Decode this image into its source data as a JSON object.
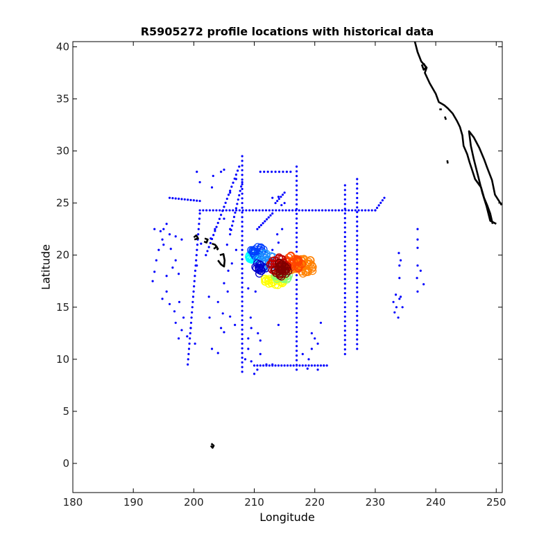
{
  "chart_data": {
    "type": "scatter",
    "title": "R5905272 profile locations with historical data",
    "xlabel": "Longitude",
    "ylabel": "Latitude",
    "xlim": [
      180,
      251
    ],
    "ylim": [
      -2.8,
      40.5
    ],
    "xticks": [
      180,
      190,
      200,
      210,
      220,
      230,
      240,
      250
    ],
    "yticks": [
      0,
      5,
      10,
      15,
      20,
      25,
      30,
      35,
      40
    ],
    "grid": false,
    "legend": "none",
    "colors": {
      "historical": "#0000ff",
      "coast": "#000000",
      "profile_colormap": [
        "#00ffff",
        "#0000cc",
        "#ffff00",
        "#7fff7f",
        "#ff8000",
        "#ff4000",
        "#c00000",
        "#800000"
      ]
    },
    "historical_lines": [
      {
        "x": [
          208,
          208
        ],
        "y": [
          8.8,
          29.5
        ],
        "step": 0.45
      },
      {
        "x": [
          217,
          217
        ],
        "y": [
          9.0,
          28.5
        ],
        "step": 0.45
      },
      {
        "x": [
          225,
          225
        ],
        "y": [
          10.5,
          26.7
        ],
        "step": 0.45
      },
      {
        "x": [
          227,
          227
        ],
        "y": [
          11.0,
          27.3
        ],
        "step": 0.45
      },
      {
        "x": [
          201,
          230
        ],
        "y": [
          24.3,
          24.3
        ],
        "step": 0.55
      },
      {
        "x": [
          210,
          222
        ],
        "y": [
          9.4,
          9.4
        ],
        "step": 0.5
      },
      {
        "x": [
          202,
          207.5
        ],
        "y": [
          20.0,
          28.5
        ],
        "step": 0.45
      },
      {
        "x": [
          199,
          201
        ],
        "y": [
          9.5,
          24.0
        ],
        "step": 0.5
      },
      {
        "x": [
          211,
          216
        ],
        "y": [
          28.0,
          28.0
        ],
        "step": 0.6
      },
      {
        "x": [
          230,
          231.5
        ],
        "y": [
          24.3,
          25.5
        ],
        "step": 0.4
      },
      {
        "x": [
          196,
          201
        ],
        "y": [
          25.5,
          25.2
        ],
        "step": 0.5
      },
      {
        "x": [
          206,
          208
        ],
        "y": [
          22.0,
          27.0
        ],
        "step": 0.45
      },
      {
        "x": [
          210.5,
          213
        ],
        "y": [
          22.5,
          24.0
        ],
        "step": 0.35
      },
      {
        "x": [
          213.5,
          215
        ],
        "y": [
          25.0,
          26.0
        ],
        "step": 0.35
      }
    ],
    "historical_points": [
      [
        193.2,
        17.5
      ],
      [
        193.5,
        18.4
      ],
      [
        193.8,
        19.5
      ],
      [
        194.2,
        20.5
      ],
      [
        194.8,
        21.5
      ],
      [
        195.0,
        22.5
      ],
      [
        193.5,
        22.5
      ],
      [
        194.5,
        22.3
      ],
      [
        195.5,
        23.0
      ],
      [
        196.0,
        22.0
      ],
      [
        197.0,
        21.8
      ],
      [
        198.0,
        21.5
      ],
      [
        195.0,
        21.0
      ],
      [
        196.2,
        20.6
      ],
      [
        197.0,
        19.5
      ],
      [
        195.5,
        18.0
      ],
      [
        196.5,
        18.8
      ],
      [
        197.5,
        18.2
      ],
      [
        194.8,
        15.8
      ],
      [
        195.5,
        16.5
      ],
      [
        196.0,
        15.3
      ],
      [
        196.8,
        14.6
      ],
      [
        197.6,
        15.5
      ],
      [
        198.3,
        14.0
      ],
      [
        197.0,
        13.5
      ],
      [
        198.0,
        12.8
      ],
      [
        198.9,
        12.2
      ],
      [
        197.5,
        12.0
      ],
      [
        199.5,
        13.0
      ],
      [
        200.2,
        11.5
      ],
      [
        203.0,
        11.0
      ],
      [
        204.0,
        10.6
      ],
      [
        205.0,
        12.6
      ],
      [
        204.5,
        13.0
      ],
      [
        202.5,
        16.0
      ],
      [
        202.6,
        14.0
      ],
      [
        204.0,
        15.5
      ],
      [
        205.6,
        16.5
      ],
      [
        204.8,
        14.4
      ],
      [
        206.0,
        14.1
      ],
      [
        206.8,
        13.3
      ],
      [
        205.0,
        17.3
      ],
      [
        205.7,
        18.5
      ],
      [
        206.3,
        19.2
      ],
      [
        207.0,
        20.5
      ],
      [
        205.5,
        21.0
      ],
      [
        206.0,
        22.5
      ],
      [
        205.0,
        23.5
      ],
      [
        203.0,
        26.5
      ],
      [
        203.2,
        27.6
      ],
      [
        204.5,
        28.0
      ],
      [
        205.0,
        28.2
      ],
      [
        206.0,
        26.0
      ],
      [
        207.0,
        27.3
      ],
      [
        200.5,
        28.0
      ],
      [
        201.0,
        27.0
      ],
      [
        203.5,
        22.5
      ],
      [
        202.8,
        21.6
      ],
      [
        200.5,
        19.0
      ],
      [
        201.2,
        21.1
      ],
      [
        209.0,
        12.0
      ],
      [
        209.0,
        11.0
      ],
      [
        208.5,
        10.0
      ],
      [
        209.5,
        9.8
      ],
      [
        210.0,
        8.6
      ],
      [
        210.5,
        9.0
      ],
      [
        211.0,
        10.5
      ],
      [
        211.0,
        11.8
      ],
      [
        210.6,
        12.5
      ],
      [
        212.0,
        9.5
      ],
      [
        213.0,
        9.5
      ],
      [
        209.5,
        13.0
      ],
      [
        209.4,
        14.0
      ],
      [
        210.2,
        16.5
      ],
      [
        209.0,
        16.8
      ],
      [
        219.0,
        10.0
      ],
      [
        218.0,
        10.5
      ],
      [
        219.5,
        11.0
      ],
      [
        220.0,
        12.0
      ],
      [
        220.5,
        11.5
      ],
      [
        221.0,
        13.5
      ],
      [
        218.8,
        9.1
      ],
      [
        220.5,
        9.0
      ],
      [
        221.5,
        9.4
      ],
      [
        214.0,
        13.3
      ],
      [
        219.5,
        12.5
      ],
      [
        213.0,
        25.5
      ],
      [
        214.0,
        25.6
      ],
      [
        214.5,
        24.8
      ],
      [
        215.0,
        25.0
      ],
      [
        214.0,
        21.2
      ],
      [
        213.8,
        22.0
      ],
      [
        214.6,
        22.5
      ],
      [
        213.0,
        20.5
      ],
      [
        233.2,
        14.5
      ],
      [
        233.5,
        15.0
      ],
      [
        234.0,
        15.8
      ],
      [
        233.8,
        14.0
      ],
      [
        234.5,
        15.0
      ],
      [
        234.2,
        16.0
      ],
      [
        233.0,
        15.5
      ],
      [
        233.4,
        16.2
      ],
      [
        234.0,
        19.0
      ],
      [
        234.2,
        19.5
      ],
      [
        233.9,
        20.2
      ],
      [
        234.0,
        17.8
      ],
      [
        237.0,
        22.5
      ],
      [
        237.0,
        21.5
      ],
      [
        237.0,
        20.7
      ],
      [
        236.9,
        17.8
      ],
      [
        237.0,
        19.0
      ],
      [
        237.5,
        18.5
      ],
      [
        238.0,
        17.2
      ],
      [
        237.0,
        16.5
      ]
    ],
    "profile_clusters": [
      {
        "cx": 209.8,
        "cy": 19.8,
        "rx": 0.9,
        "ry": 0.5,
        "n": 16,
        "color": "#00ffff"
      },
      {
        "cx": 210.5,
        "cy": 20.3,
        "rx": 1.2,
        "ry": 0.5,
        "n": 18,
        "color": "#0040ff"
      },
      {
        "cx": 211.8,
        "cy": 19.4,
        "rx": 1.5,
        "ry": 0.8,
        "n": 25,
        "color": "#1e90ff"
      },
      {
        "cx": 211.0,
        "cy": 18.7,
        "rx": 1.0,
        "ry": 0.6,
        "n": 14,
        "color": "#0000cc"
      },
      {
        "cx": 213.5,
        "cy": 17.6,
        "rx": 1.8,
        "ry": 0.5,
        "n": 28,
        "color": "#ffff00"
      },
      {
        "cx": 214.5,
        "cy": 17.9,
        "rx": 1.5,
        "ry": 0.5,
        "n": 18,
        "color": "#7fff7f"
      },
      {
        "cx": 218.0,
        "cy": 19.0,
        "rx": 2.2,
        "ry": 0.8,
        "n": 45,
        "color": "#ff8000"
      },
      {
        "cx": 216.5,
        "cy": 19.3,
        "rx": 1.5,
        "ry": 0.7,
        "n": 30,
        "color": "#ff4500"
      },
      {
        "cx": 214.0,
        "cy": 18.9,
        "rx": 1.5,
        "ry": 0.9,
        "n": 35,
        "color": "#c00000"
      },
      {
        "cx": 214.5,
        "cy": 18.6,
        "rx": 1.2,
        "ry": 0.7,
        "n": 25,
        "color": "#800000"
      }
    ],
    "coast_lines": [
      [
        [
          236.5,
          40.6
        ],
        [
          237.0,
          39.5
        ],
        [
          237.6,
          38.6
        ],
        [
          238.5,
          38.0
        ],
        [
          238.2,
          37.5
        ],
        [
          239.0,
          36.5
        ],
        [
          240.0,
          35.5
        ],
        [
          240.5,
          34.7
        ],
        [
          241.4,
          34.4
        ],
        [
          242.0,
          34.1
        ],
        [
          242.8,
          33.6
        ],
        [
          243.5,
          32.9
        ],
        [
          244.0,
          32.3
        ],
        [
          244.4,
          31.5
        ],
        [
          244.6,
          30.5
        ],
        [
          245.2,
          29.7
        ],
        [
          245.6,
          28.9
        ],
        [
          246.0,
          28.2
        ],
        [
          246.5,
          27.3
        ],
        [
          247.5,
          26.5
        ],
        [
          248.0,
          25.5
        ],
        [
          248.5,
          24.8
        ],
        [
          249.0,
          24.0
        ],
        [
          249.4,
          23.0
        ]
      ],
      [
        [
          250.9,
          24.8
        ],
        [
          249.8,
          25.8
        ],
        [
          249.3,
          27.2
        ],
        [
          248.5,
          28.4
        ],
        [
          248.0,
          29.2
        ],
        [
          247.2,
          30.3
        ],
        [
          246.3,
          31.3
        ],
        [
          245.5,
          31.9
        ],
        [
          245.8,
          30.5
        ],
        [
          246.3,
          29.2
        ],
        [
          247.0,
          27.6
        ],
        [
          247.7,
          26.0
        ],
        [
          248.4,
          24.7
        ],
        [
          249.0,
          23.3
        ],
        [
          250.0,
          23.0
        ]
      ],
      [
        [
          237.7,
          38.3
        ],
        [
          238.0,
          37.8
        ],
        [
          238.4,
          38.0
        ],
        [
          238.0,
          38.4
        ]
      ],
      [
        [
          240.6,
          34.0
        ],
        [
          241.0,
          34.0
        ]
      ],
      [
        [
          241.5,
          33.3
        ],
        [
          241.7,
          33.0
        ]
      ],
      [
        [
          241.9,
          29.1
        ],
        [
          242.0,
          28.8
        ]
      ],
      [
        [
          200.0,
          21.7
        ],
        [
          200.4,
          21.9
        ],
        [
          200.7,
          21.6
        ],
        [
          200.1,
          21.5
        ]
      ],
      [
        [
          201.8,
          21.6
        ],
        [
          202.3,
          21.5
        ],
        [
          202.1,
          21.2
        ],
        [
          201.7,
          21.3
        ]
      ],
      [
        [
          203.0,
          21.1
        ],
        [
          203.5,
          21.0
        ],
        [
          203.8,
          20.8
        ],
        [
          203.3,
          20.6
        ]
      ],
      [
        [
          203.6,
          20.9
        ],
        [
          204.0,
          20.6
        ],
        [
          203.8,
          20.5
        ]
      ],
      [
        [
          204.3,
          20.0
        ],
        [
          204.9,
          20.1
        ],
        [
          205.1,
          19.5
        ],
        [
          205.0,
          18.9
        ],
        [
          204.5,
          19.1
        ],
        [
          204.0,
          19.5
        ]
      ],
      [
        [
          202.9,
          1.9
        ],
        [
          203.3,
          1.7
        ],
        [
          203.1,
          1.5
        ],
        [
          202.8,
          1.7
        ]
      ]
    ]
  }
}
